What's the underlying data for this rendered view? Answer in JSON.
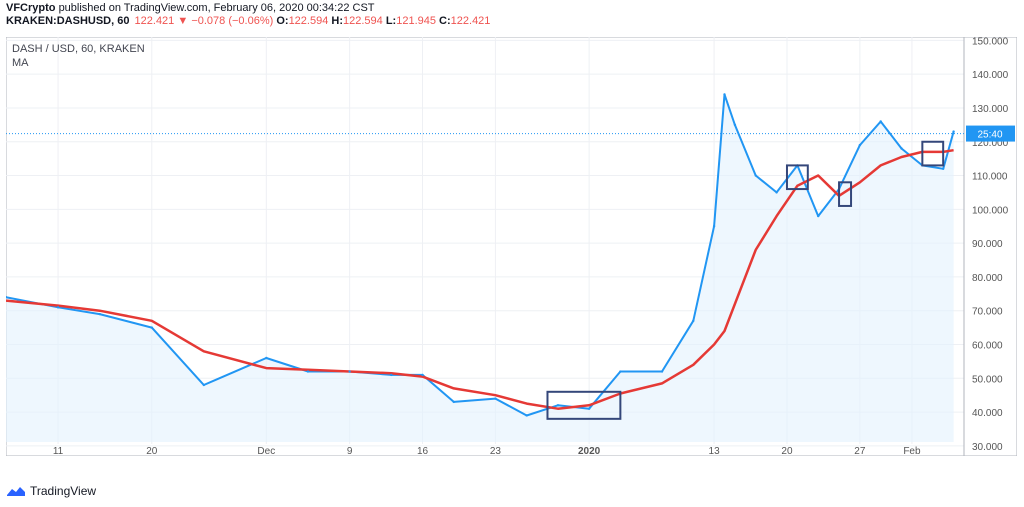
{
  "header": {
    "line1": {
      "author": "VFCrypto",
      "published_text": "published on TradingView.com, February 06, 2020 00:34:22 CST"
    },
    "line2": {
      "symbol": "KRAKEN:DASHUSD, 60",
      "last": "122.421",
      "change_arrow": "▼",
      "change": "−0.078 (−0.06%)",
      "o_label": "O:",
      "o_value": "122.594",
      "h_label": "H:",
      "h_value": "122.594",
      "l_label": "L:",
      "l_value": "121.945",
      "c_label": "C:",
      "c_value": "122.421"
    }
  },
  "pane": {
    "title": "DASH / USD, 60, KRAKEN",
    "indicator": "MA"
  },
  "footer": {
    "brand": "TradingView",
    "icon": "tradingview-logo-icon"
  },
  "colors": {
    "price": "#2196f3",
    "ma": "#e53935",
    "box": "#34477a",
    "fill": "#e3f2fd",
    "grid": "#eef0f4"
  },
  "chart_data": {
    "type": "line",
    "title": "DASH / USD, 60, KRAKEN",
    "x_ticks": [
      "11",
      "20",
      "Dec",
      "9",
      "16",
      "23",
      "2020",
      "13",
      "20",
      "27",
      "Feb"
    ],
    "y_ticks": [
      "30.000",
      "40.000",
      "50.000",
      "60.000",
      "70.000",
      "80.000",
      "90.000",
      "100.000",
      "110.000",
      "120.000",
      "130.000",
      "140.000",
      "150.000"
    ],
    "ylim": [
      27,
      151
    ],
    "grid": true,
    "last_price": 122.421,
    "price_label": "25:40",
    "x": [
      "Nov 06",
      "Nov 11",
      "Nov 15",
      "Nov 20",
      "Nov 25",
      "Dec 01",
      "Dec 05",
      "Dec 09",
      "Dec 13",
      "Dec 16",
      "Dec 19",
      "Dec 23",
      "Dec 26",
      "Dec 29",
      "Jan 01",
      "Jan 04",
      "Jan 08",
      "Jan 11",
      "Jan 13",
      "Jan 14",
      "Jan 15",
      "Jan 17",
      "Jan 19",
      "Jan 21",
      "Jan 23",
      "Jan 25",
      "Jan 27",
      "Jan 29",
      "Jan 31",
      "Feb 02",
      "Feb 04",
      "Feb 05"
    ],
    "series": [
      {
        "name": "DASH / USD",
        "values": [
          74,
          71,
          69,
          65,
          48,
          56,
          52,
          52,
          51,
          51,
          43,
          44,
          39,
          42,
          41,
          52,
          52,
          67,
          95,
          134,
          125,
          110,
          105,
          113,
          98,
          106,
          119,
          126,
          118,
          113,
          112,
          123
        ]
      },
      {
        "name": "MA",
        "values": [
          73,
          71.5,
          70,
          67,
          58,
          53,
          52.5,
          52,
          51.5,
          50.5,
          47,
          45,
          42.5,
          41,
          42,
          45.5,
          48.5,
          54,
          60,
          64,
          72,
          88,
          98,
          107,
          110,
          104,
          108,
          113,
          115.5,
          117,
          117,
          117.5
        ]
      }
    ],
    "boxes": [
      {
        "x0": "Dec 28",
        "x1": "Jan 04",
        "y0": 38,
        "y1": 46
      },
      {
        "x0": "Jan 20",
        "x1": "Jan 22",
        "y0": 106,
        "y1": 113
      },
      {
        "x0": "Jan 25",
        "x1": "Jan 26",
        "y0": 101,
        "y1": 108
      },
      {
        "x0": "Feb 02",
        "x1": "Feb 04",
        "y0": 113,
        "y1": 120
      }
    ]
  }
}
